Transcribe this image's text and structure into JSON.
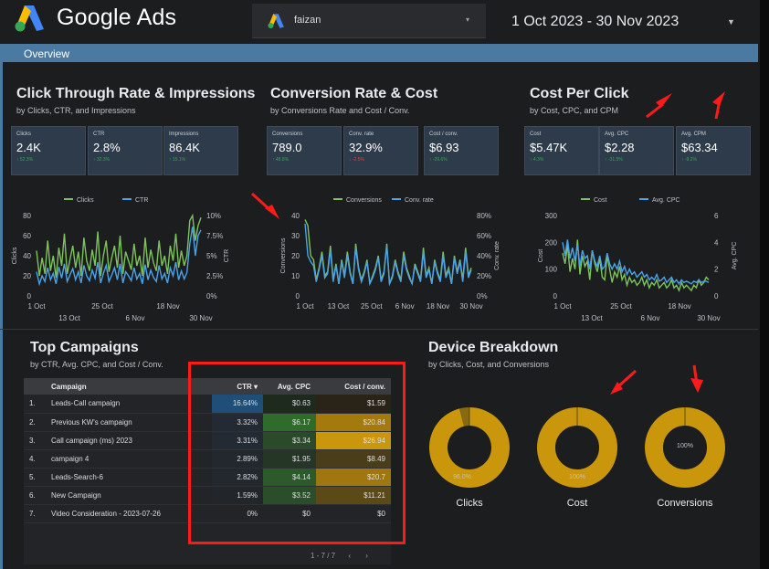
{
  "app": {
    "title": "Google Ads"
  },
  "account": {
    "name": "faizan"
  },
  "date_range": {
    "label": "1 Oct 2023 - 30 Nov 2023"
  },
  "nav": {
    "overview": "Overview"
  },
  "colors": {
    "green": "#7cc35a",
    "blue": "#4aa3e8",
    "gold": "#c9960c",
    "kpi_bg": "#2e3b4a"
  },
  "sections": {
    "ctr": {
      "title": "Click Through Rate & Impressions",
      "subtitle": "by Clicks, CTR, and Impressions",
      "kpis": [
        {
          "label": "Clicks",
          "value": "2.4K",
          "delta": "↑ 52.3%",
          "dir": "up"
        },
        {
          "label": "CTR",
          "value": "2.8%",
          "delta": "↑ 32.3%",
          "dir": "up"
        },
        {
          "label": "Impressions",
          "value": "86.4K",
          "delta": "↑ 15.1%",
          "dir": "up"
        }
      ],
      "legend": [
        "Clicks",
        "CTR"
      ],
      "left_ticks": [
        "80",
        "60",
        "40",
        "20",
        "0"
      ],
      "right_ticks": [
        "10%",
        "7.5%",
        "5%",
        "2.5%",
        "0%"
      ],
      "left_label": "Clicks",
      "right_label": "CTR"
    },
    "conv": {
      "title": "Conversion Rate & Cost",
      "subtitle": "by Conversions Rate and Cost / Conv.",
      "kpis": [
        {
          "label": "Conversions",
          "value": "789.0",
          "delta": "↑ 48.8%",
          "dir": "up"
        },
        {
          "label": "Conv. rate",
          "value": "32.9%",
          "delta": "↓ -2.5%",
          "dir": "down"
        },
        {
          "label": "Cost / conv.",
          "value": "$6.93",
          "delta": "↑ -29.6%",
          "dir": "up"
        }
      ],
      "legend": [
        "Conversions",
        "Conv. rate"
      ],
      "left_ticks": [
        "40",
        "30",
        "20",
        "10",
        "0"
      ],
      "right_ticks": [
        "80%",
        "60%",
        "40%",
        "20%",
        "0%"
      ],
      "left_label": "Conversions",
      "right_label": "Conv. rate"
    },
    "cpc": {
      "title": "Cost Per Click",
      "subtitle": "by Cost, CPC, and CPM",
      "kpis": [
        {
          "label": "Cost",
          "value": "$5.47K",
          "delta": "↑ 4.3%",
          "dir": "up"
        },
        {
          "label": "Avg. CPC",
          "value": "$2.28",
          "delta": "↑ -31.5%",
          "dir": "up"
        },
        {
          "label": "Avg. CPM",
          "value": "$63.34",
          "delta": "↑ -9.2%",
          "dir": "up"
        }
      ],
      "legend": [
        "Cost",
        "Avg. CPC"
      ],
      "left_ticks": [
        "300",
        "200",
        "100",
        "0"
      ],
      "right_ticks": [
        "6",
        "4",
        "2",
        "0"
      ],
      "left_label": "Cost",
      "right_label": "Avg. CPC"
    }
  },
  "x_ticks_top": [
    "1 Oct",
    "25 Oct",
    "18 Nov"
  ],
  "x_ticks_bottom": [
    "13 Oct",
    "6 Nov",
    "30 Nov"
  ],
  "x_ticks_top_conv": [
    "1 Oct",
    "13 Oct",
    "25 Oct",
    "6 Nov",
    "18 Nov",
    "30 Nov"
  ],
  "chart_data": [
    {
      "type": "line",
      "x_range": [
        "1 Oct",
        "30 Nov"
      ],
      "ylim": [
        0,
        80
      ],
      "y2lim": [
        0,
        10
      ],
      "series": [
        {
          "name": "Clicks",
          "axis": "left",
          "values": [
            45,
            20,
            38,
            22,
            55,
            25,
            40,
            18,
            48,
            30,
            62,
            22,
            36,
            50,
            28,
            44,
            20,
            58,
            35,
            25,
            46,
            30,
            64,
            20,
            40,
            55,
            24,
            38,
            50,
            28,
            60,
            22,
            44,
            35,
            26,
            52,
            30,
            40,
            20,
            58,
            28,
            46,
            33,
            25,
            55,
            30,
            40,
            22,
            50,
            35,
            62,
            28,
            45,
            30,
            40,
            75,
            80,
            55,
            70,
            78
          ]
        },
        {
          "name": "CTR",
          "axis": "right",
          "values": [
            3.0,
            1.5,
            2.5,
            1.8,
            3.5,
            2.0,
            2.8,
            1.5,
            3.6,
            2.2,
            4.0,
            1.8,
            2.6,
            3.4,
            2.0,
            3.0,
            1.6,
            3.8,
            2.5,
            1.9,
            3.2,
            2.2,
            4.2,
            1.6,
            2.8,
            3.8,
            1.8,
            2.6,
            3.5,
            2.0,
            4.0,
            1.6,
            3.0,
            2.5,
            1.9,
            3.5,
            2.1,
            2.8,
            1.5,
            3.9,
            2.0,
            3.2,
            2.3,
            1.8,
            3.8,
            2.1,
            2.8,
            1.6,
            3.5,
            2.5,
            4.2,
            2.0,
            3.1,
            2.1,
            2.9,
            6.5,
            8.6,
            5.0,
            7.5,
            8.2
          ]
        }
      ]
    },
    {
      "type": "line",
      "x_range": [
        "1 Oct",
        "30 Nov"
      ],
      "ylim": [
        0,
        40
      ],
      "y2lim": [
        0,
        80
      ],
      "series": [
        {
          "name": "Conversions",
          "axis": "left",
          "values": [
            38,
            35,
            20,
            18,
            8,
            14,
            22,
            10,
            12,
            25,
            8,
            16,
            6,
            18,
            10,
            22,
            12,
            6,
            26,
            14,
            8,
            12,
            18,
            6,
            10,
            14,
            20,
            8,
            12,
            26,
            6,
            10,
            18,
            12,
            8,
            22,
            14,
            10,
            6,
            16,
            12,
            8,
            24,
            10,
            14,
            6,
            18,
            12,
            8,
            22,
            10,
            14,
            6,
            20,
            12,
            18,
            8,
            24,
            10,
            14
          ]
        },
        {
          "name": "Conv. rate",
          "axis": "right",
          "values": [
            72,
            40,
            34,
            30,
            14,
            26,
            40,
            18,
            22,
            46,
            14,
            30,
            12,
            34,
            18,
            40,
            22,
            12,
            48,
            26,
            14,
            22,
            34,
            12,
            18,
            26,
            38,
            14,
            22,
            50,
            12,
            18,
            34,
            22,
            14,
            40,
            26,
            18,
            12,
            30,
            22,
            14,
            44,
            18,
            26,
            12,
            34,
            22,
            14,
            40,
            18,
            26,
            12,
            38,
            22,
            34,
            14,
            44,
            18,
            26
          ]
        }
      ]
    },
    {
      "type": "line",
      "x_range": [
        "1 Oct",
        "30 Nov"
      ],
      "ylim": [
        0,
        300
      ],
      "y2lim": [
        0,
        6
      ],
      "series": [
        {
          "name": "Cost",
          "axis": "left",
          "values": [
            160,
            120,
            190,
            90,
            140,
            100,
            210,
            80,
            150,
            110,
            130,
            60,
            170,
            120,
            90,
            140,
            70,
            60,
            150,
            100,
            50,
            90,
            70,
            110,
            60,
            80,
            40,
            70,
            50,
            60,
            40,
            50,
            70,
            40,
            60,
            30,
            50,
            40,
            60,
            30,
            40,
            50,
            30,
            40,
            60,
            30,
            40,
            20,
            50,
            30,
            40,
            30,
            20,
            40,
            30,
            60,
            40,
            50,
            70,
            60
          ]
        },
        {
          "name": "Avg. CPC",
          "axis": "right",
          "values": [
            4.0,
            3.0,
            4.2,
            2.8,
            3.6,
            2.6,
            3.8,
            2.2,
            3.4,
            2.8,
            3.0,
            2.0,
            3.4,
            2.6,
            2.2,
            3.0,
            2.0,
            2.2,
            3.2,
            2.4,
            2.0,
            2.4,
            2.0,
            2.6,
            1.8,
            2.2,
            1.6,
            2.0,
            1.6,
            1.8,
            1.4,
            1.6,
            1.8,
            1.4,
            1.6,
            1.2,
            1.4,
            1.2,
            1.6,
            1.1,
            1.2,
            1.4,
            1.0,
            1.2,
            1.4,
            1.0,
            1.2,
            0.9,
            1.2,
            1.0,
            1.1,
            1.0,
            0.9,
            1.1,
            1.0,
            1.2,
            1.0,
            1.1,
            1.1,
            1.0
          ]
        }
      ]
    },
    {
      "type": "table",
      "title": "Top Campaigns",
      "columns": [
        "Campaign",
        "CTR ▾",
        "Avg. CPC",
        "Cost / conv."
      ],
      "rows": [
        {
          "idx": "1.",
          "name": "Leads-Call campaign",
          "ctr": "16.64%",
          "cpc": "$0.63",
          "cost": "$1.59",
          "ctr_bg": "#1f4f78",
          "cpc_bg": "#1f2a1f",
          "cost_bg": "#2a2418"
        },
        {
          "idx": "2.",
          "name": "Previous KW's campaign",
          "ctr": "3.32%",
          "cpc": "$6.17",
          "cost": "$20.84",
          "ctr_bg": "#242a33",
          "cpc_bg": "#2f6b2a",
          "cost_bg": "#a57a0c"
        },
        {
          "idx": "3.",
          "name": "Call campaign (ms) 2023",
          "ctr": "3.31%",
          "cpc": "$3.34",
          "cost": "$26.94",
          "ctr_bg": "#242a33",
          "cpc_bg": "#2b4a2a",
          "cost_bg": "#c9960c"
        },
        {
          "idx": "4.",
          "name": "campaign 4",
          "ctr": "2.89%",
          "cpc": "$1.95",
          "cost": "$8.49",
          "ctr_bg": "#23282f",
          "cpc_bg": "#263626",
          "cost_bg": "#4a3d1a"
        },
        {
          "idx": "5.",
          "name": "Leads-Search-6",
          "ctr": "2.82%",
          "cpc": "$4.14",
          "cost": "$20.7",
          "ctr_bg": "#23282f",
          "cpc_bg": "#2c5a2a",
          "cost_bg": "#a0770e"
        },
        {
          "idx": "6.",
          "name": "New Campaign",
          "ctr": "1.59%",
          "cpc": "$3.52",
          "cost": "$11.21",
          "ctr_bg": "#22262b",
          "cpc_bg": "#2b4e2a",
          "cost_bg": "#5c4a16"
        },
        {
          "idx": "7.",
          "name": "Video Consideration - 2023-07-26",
          "ctr": "0%",
          "cpc": "$0",
          "cost": "$0",
          "ctr_bg": "#232427",
          "cpc_bg": "#232427",
          "cost_bg": "#232427"
        }
      ]
    },
    {
      "type": "pie",
      "title": "Device Breakdown",
      "charts": [
        {
          "name": "Clicks",
          "slices": [
            {
              "label": "96.0%",
              "value": 96.0
            },
            {
              "label": "",
              "value": 4.0
            }
          ]
        },
        {
          "name": "Cost",
          "slices": [
            {
              "label": "100%",
              "value": 100
            }
          ]
        },
        {
          "name": "Conversions",
          "slices": [
            {
              "label": "100%",
              "value": 100
            }
          ]
        }
      ]
    }
  ],
  "campaigns": {
    "title": "Top Campaigns",
    "subtitle": "by CTR, Avg. CPC, and Cost / Conv.",
    "pager": "1 - 7 / 7"
  },
  "devices": {
    "title": "Device Breakdown",
    "subtitle": "by Clicks, Cost, and Conversions"
  }
}
